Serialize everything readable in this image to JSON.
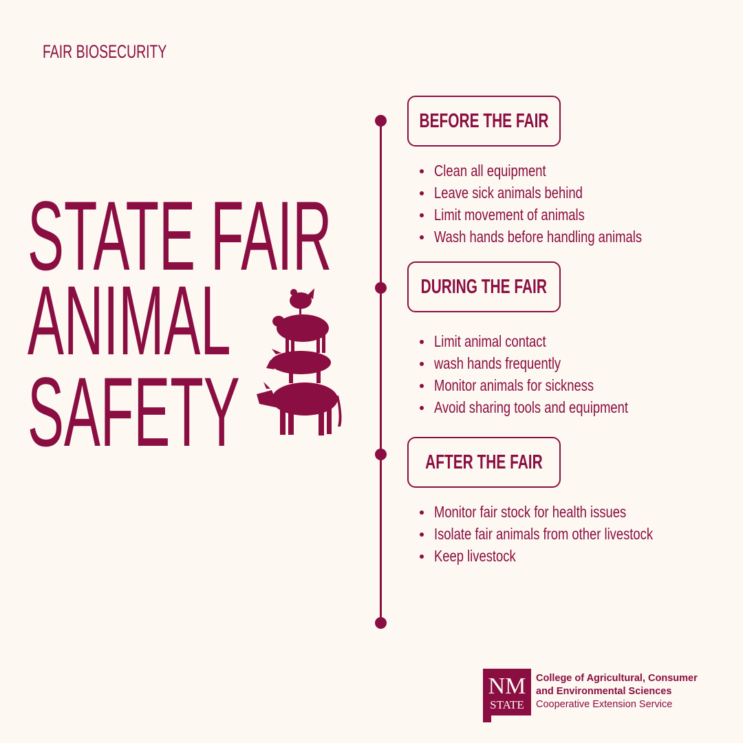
{
  "kicker": "FAIR BIOSECURITY",
  "title": {
    "line1": "STATE FAIR",
    "line2": "ANIMAL",
    "line3": "SAFETY"
  },
  "brand_color": "#8a0e41",
  "background_color": "#fdf8f2",
  "sections": [
    {
      "heading": "BEFORE THE FAIR",
      "items": [
        "Clean all equipment",
        "Leave sick animals behind",
        "Limit movement of animals",
        "Wash hands before handling animals"
      ]
    },
    {
      "heading": "DURING THE FAIR",
      "items": [
        "Limit animal contact",
        "wash hands frequently",
        "Monitor animals for sickness",
        "Avoid sharing tools and equipment"
      ]
    },
    {
      "heading": "AFTER THE FAIR",
      "items": [
        "Monitor fair stock for health issues",
        "Isolate fair animals from other livestock",
        "Keep livestock"
      ]
    }
  ],
  "logo": {
    "mark_top": "NM",
    "mark_bottom": "STATE",
    "line1": "College of Agricultural, Consumer",
    "line2": "and Environmental Sciences",
    "line3": "Cooperative Extension Service"
  }
}
